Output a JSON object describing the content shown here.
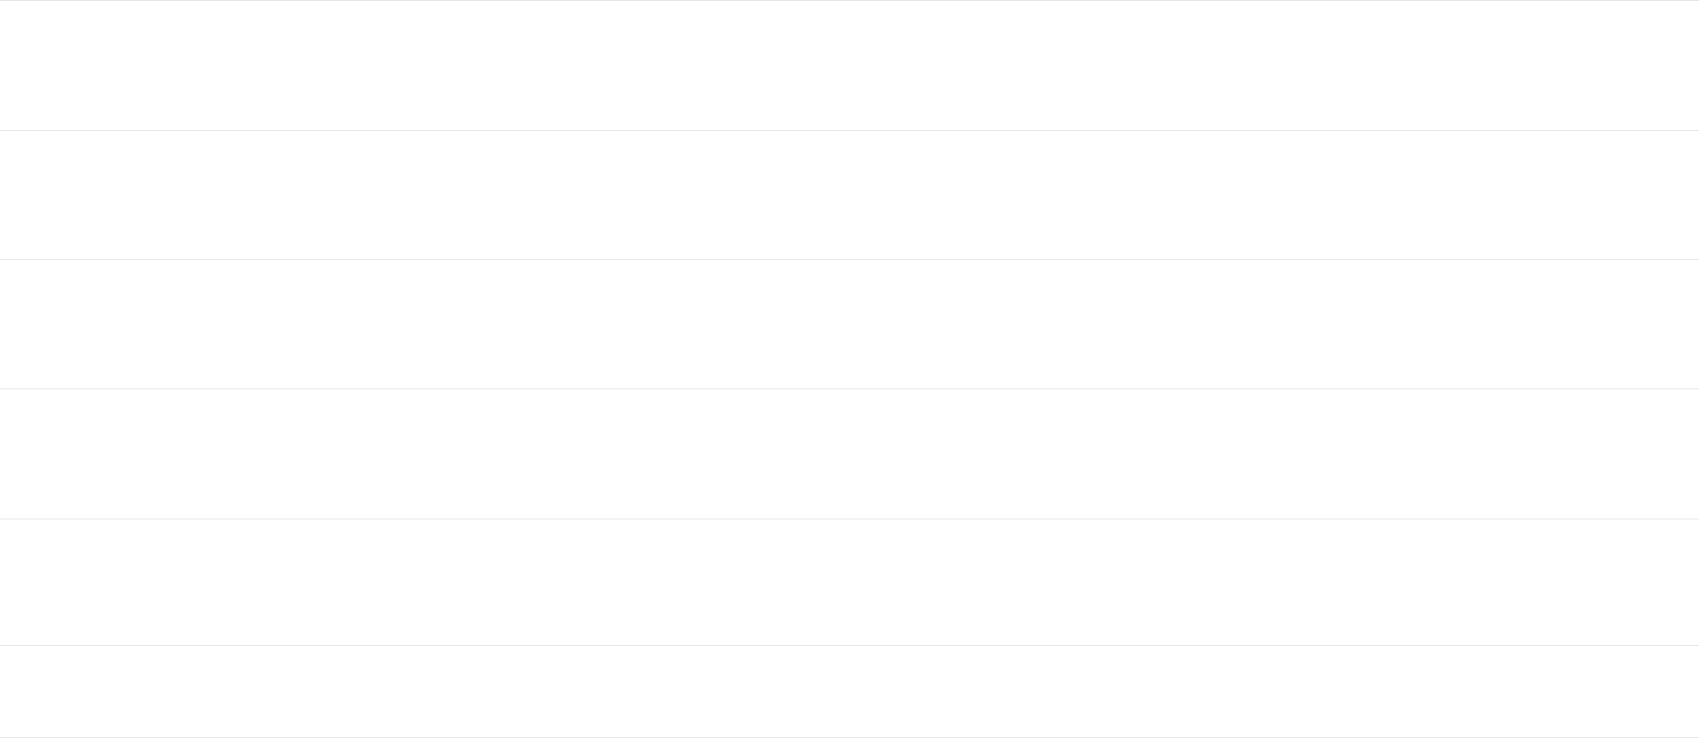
{
  "colors": {
    "divider": "#e6e6e6",
    "background": "#ffffff"
  },
  "list": {
    "rows": [
      {},
      {},
      {},
      {},
      {},
      {}
    ]
  }
}
